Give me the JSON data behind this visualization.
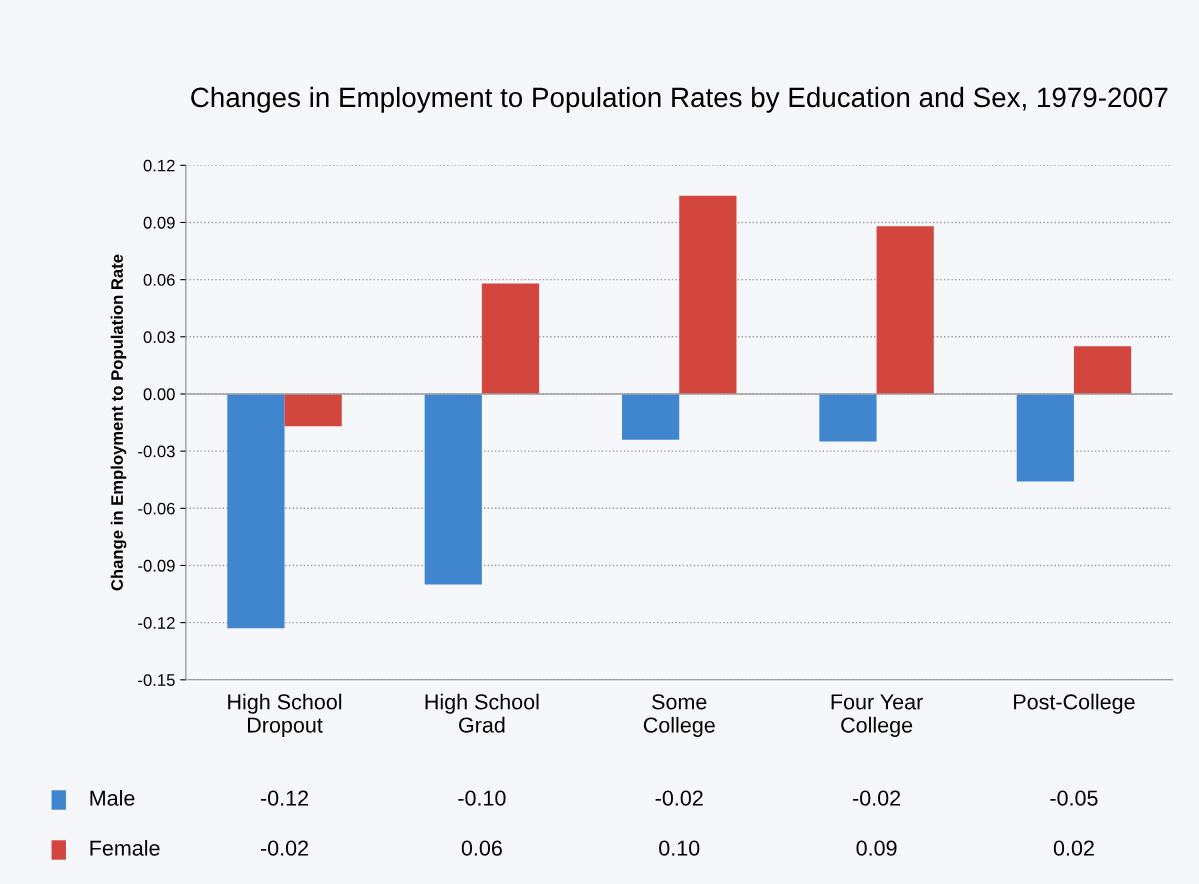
{
  "chart_data": {
    "type": "bar",
    "title": "Changes in Employment to Population Rates by Education and Sex, 1979-2007",
    "ylabel": "Change in Employment to Population Rate",
    "categories": [
      "High School\nDropout",
      "High School\nGrad",
      "Some\nCollege",
      "Four Year\nCollege",
      "Post-College"
    ],
    "series": [
      {
        "name": "Male",
        "color": "#3f86cf",
        "values": [
          -0.123,
          -0.1,
          -0.024,
          -0.025,
          -0.046
        ],
        "value_labels": [
          "-0.12",
          "-0.10",
          "-0.02",
          "-0.02",
          "-0.05"
        ]
      },
      {
        "name": "Female",
        "color": "#d2463e",
        "values": [
          -0.017,
          0.058,
          0.104,
          0.088,
          0.025
        ],
        "value_labels": [
          "-0.02",
          "0.06",
          "0.10",
          "0.09",
          "0.02"
        ]
      }
    ],
    "ylim": [
      -0.15,
      0.12
    ],
    "yticks": [
      -0.15,
      -0.12,
      -0.09,
      -0.06,
      -0.03,
      {
        "value": 0,
        "label": "0.00"
      },
      0.03,
      0.06,
      0.09,
      0.12
    ],
    "ref_lines": [
      {
        "axis": "y",
        "value": 0,
        "color": "#a0a0a0"
      }
    ],
    "grid": "y",
    "legend": "bottom"
  }
}
